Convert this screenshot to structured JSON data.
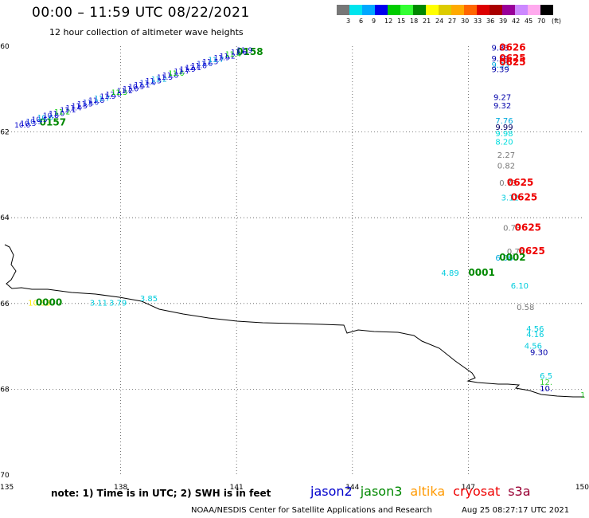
{
  "title": "00:00 – 11:59 UTC 08/22/2021",
  "subtitle": "12 hour collection of altimeter wave heights",
  "colorbar": {
    "unit": "(ft)",
    "colors": [
      "#777777",
      "#00e5ee",
      "#00a8ff",
      "#0000ee",
      "#00cc00",
      "#33ff33",
      "#008800",
      "#ffff00",
      "#ddcc00",
      "#ffaa00",
      "#ff6600",
      "#dd0000",
      "#aa0000",
      "#990099",
      "#cc88ff",
      "#ffaaee",
      "#000000"
    ],
    "labels": [
      "3",
      "6",
      "9",
      "12",
      "15",
      "18",
      "21",
      "24",
      "27",
      "30",
      "33",
      "36",
      "39",
      "42",
      "45",
      "70"
    ]
  },
  "map": {
    "lon_labels": [
      "135",
      "138",
      "141",
      "144",
      "147",
      "150"
    ],
    "lat_labels": [
      "-60",
      "-62",
      "-64",
      "-66",
      "-68",
      "-70"
    ]
  },
  "track_labels": [
    {
      "text": "0626",
      "lon": 147.8,
      "lat": -60.1,
      "color": "#ee0000"
    },
    {
      "text": "0625",
      "lon": 147.8,
      "lat": -60.35,
      "color": "#ee0000"
    },
    {
      "text": "0625",
      "lon": 147.8,
      "lat": -60.45,
      "color": "#ee0000"
    },
    {
      "text": "0625",
      "lon": 148.0,
      "lat": -63.25,
      "color": "#ee0000"
    },
    {
      "text": "0625",
      "lon": 148.1,
      "lat": -63.6,
      "color": "#ee0000"
    },
    {
      "text": "0625",
      "lon": 148.2,
      "lat": -64.3,
      "color": "#ee0000"
    },
    {
      "text": "0625",
      "lon": 148.3,
      "lat": -64.85,
      "color": "#ee0000"
    },
    {
      "text": "0158",
      "lon": 141.0,
      "lat": -60.2,
      "color": "#008800"
    },
    {
      "text": "0157",
      "lon": 135.9,
      "lat": -61.85,
      "color": "#008800"
    },
    {
      "text": "0000",
      "lon": 135.8,
      "lat": -66.05,
      "color": "#008800"
    },
    {
      "text": "0001",
      "lon": 147.0,
      "lat": -65.35,
      "color": "#008800"
    },
    {
      "text": "0002",
      "lon": 147.8,
      "lat": -65.0,
      "color": "#008800"
    }
  ],
  "swh_labels": [
    {
      "text": "9.83",
      "lon": 147.6,
      "lat": -60.1,
      "color": "#0000aa"
    },
    {
      "text": "9.59",
      "lon": 147.6,
      "lat": -60.35,
      "color": "#0000aa"
    },
    {
      "text": "9.33",
      "lon": 147.6,
      "lat": -60.5,
      "color": "#00aadd"
    },
    {
      "text": "9.39",
      "lon": 147.6,
      "lat": -60.6,
      "color": "#0000aa"
    },
    {
      "text": "9.27",
      "lon": 147.65,
      "lat": -61.25,
      "color": "#0000aa"
    },
    {
      "text": "9.32",
      "lon": 147.65,
      "lat": -61.45,
      "color": "#0000aa"
    },
    {
      "text": "7.76",
      "lon": 147.7,
      "lat": -61.8,
      "color": "#00aadd"
    },
    {
      "text": "9.99",
      "lon": 147.7,
      "lat": -61.95,
      "color": "#000066"
    },
    {
      "text": "9.98",
      "lon": 147.7,
      "lat": -62.1,
      "color": "#00dddd"
    },
    {
      "text": "8.20",
      "lon": 147.7,
      "lat": -62.3,
      "color": "#00dddd"
    },
    {
      "text": "2.27",
      "lon": 147.75,
      "lat": -62.6,
      "color": "#777777"
    },
    {
      "text": "0.82",
      "lon": 147.75,
      "lat": -62.85,
      "color": "#777777"
    },
    {
      "text": "0.73",
      "lon": 147.8,
      "lat": -63.25,
      "color": "#777777"
    },
    {
      "text": "3.12",
      "lon": 147.85,
      "lat": -63.6,
      "color": "#00ccdd"
    },
    {
      "text": "0.73",
      "lon": 147.9,
      "lat": -64.3,
      "color": "#777777"
    },
    {
      "text": "0.76",
      "lon": 148.0,
      "lat": -64.85,
      "color": "#777777"
    },
    {
      "text": "6.06",
      "lon": 147.7,
      "lat": -65.0,
      "color": "#00aadd"
    },
    {
      "text": "4.89",
      "lon": 146.3,
      "lat": -65.35,
      "color": "#00ccdd"
    },
    {
      "text": "6.10",
      "lon": 148.1,
      "lat": -65.65,
      "color": "#00ccdd"
    },
    {
      "text": "0.58",
      "lon": 148.25,
      "lat": -66.15,
      "color": "#777777"
    },
    {
      "text": "4.56",
      "lon": 148.5,
      "lat": -66.65,
      "color": "#00ccdd"
    },
    {
      "text": "4.16",
      "lon": 148.5,
      "lat": -66.78,
      "color": "#00ccdd"
    },
    {
      "text": "4.56",
      "lon": 148.45,
      "lat": -67.05,
      "color": "#00ccdd"
    },
    {
      "text": "9.30",
      "lon": 148.6,
      "lat": -67.2,
      "color": "#0000aa"
    },
    {
      "text": "6.5",
      "lon": 148.85,
      "lat": -67.75,
      "color": "#00ccdd"
    },
    {
      "text": "12.",
      "lon": 148.85,
      "lat": -67.9,
      "color": "#33cc33"
    },
    {
      "text": "10.",
      "lon": 148.85,
      "lat": -68.05,
      "color": "#0000aa"
    },
    {
      "text": "1",
      "lon": 149.9,
      "lat": -68.2,
      "color": "#33cc33"
    },
    {
      "text": "10.53",
      "lon": 135.6,
      "lat": -66.05,
      "color": "#ffee00"
    },
    {
      "text": "3.11",
      "lon": 137.2,
      "lat": -66.05,
      "color": "#00ccdd"
    },
    {
      "text": "3.79",
      "lon": 137.7,
      "lat": -66.05,
      "color": "#00ccdd"
    },
    {
      "text": "3.85",
      "lon": 138.5,
      "lat": -65.95,
      "color": "#00ccdd"
    }
  ],
  "dense_track": {
    "start": {
      "lon": 135.25,
      "lat": -61.9
    },
    "end": {
      "lon": 141.0,
      "lat": -60.15
    },
    "colors": [
      "#0000cc",
      "#0000cc",
      "#1133dd",
      "#0000cc",
      "#00aadd",
      "#0000cc",
      "#0000cc",
      "#00cc00",
      "#0000cc",
      "#0000cc"
    ],
    "values": [
      "10.0",
      "10.3",
      "10.9",
      "10.5",
      "10.6",
      "10.8",
      "11.0",
      "11.2",
      "11.1",
      "11.4",
      "11.3",
      "11.5",
      "11.6",
      "11.8",
      "11.7",
      "11.9",
      "12.0",
      "11.3",
      "11.2",
      "11.0",
      "10.9",
      "11.1",
      "11.4",
      "11.3",
      "11.2",
      "11.5",
      "11.8",
      "11.6",
      "11.7",
      "11.9",
      "12.1",
      "11.8",
      "11.6",
      "11.5",
      "11.7",
      "11.9",
      "11.2",
      "11.4",
      "11.6",
      "11.9"
    ]
  },
  "footer": {
    "note": "note:  1) Time is in UTC;  2) SWH is in feet",
    "missions": [
      {
        "name": "jason2",
        "color": "#0000cc"
      },
      {
        "name": "jason3",
        "color": "#008800"
      },
      {
        "name": "altika",
        "color": "#ff9900"
      },
      {
        "name": "cryosat",
        "color": "#ee0000"
      },
      {
        "name": "s3a",
        "color": "#990033"
      }
    ],
    "credit": "NOAA/NESDIS Center for Satellite Applications and Research",
    "timestamp": "Aug 25 08:27:17 UTC 2021"
  }
}
